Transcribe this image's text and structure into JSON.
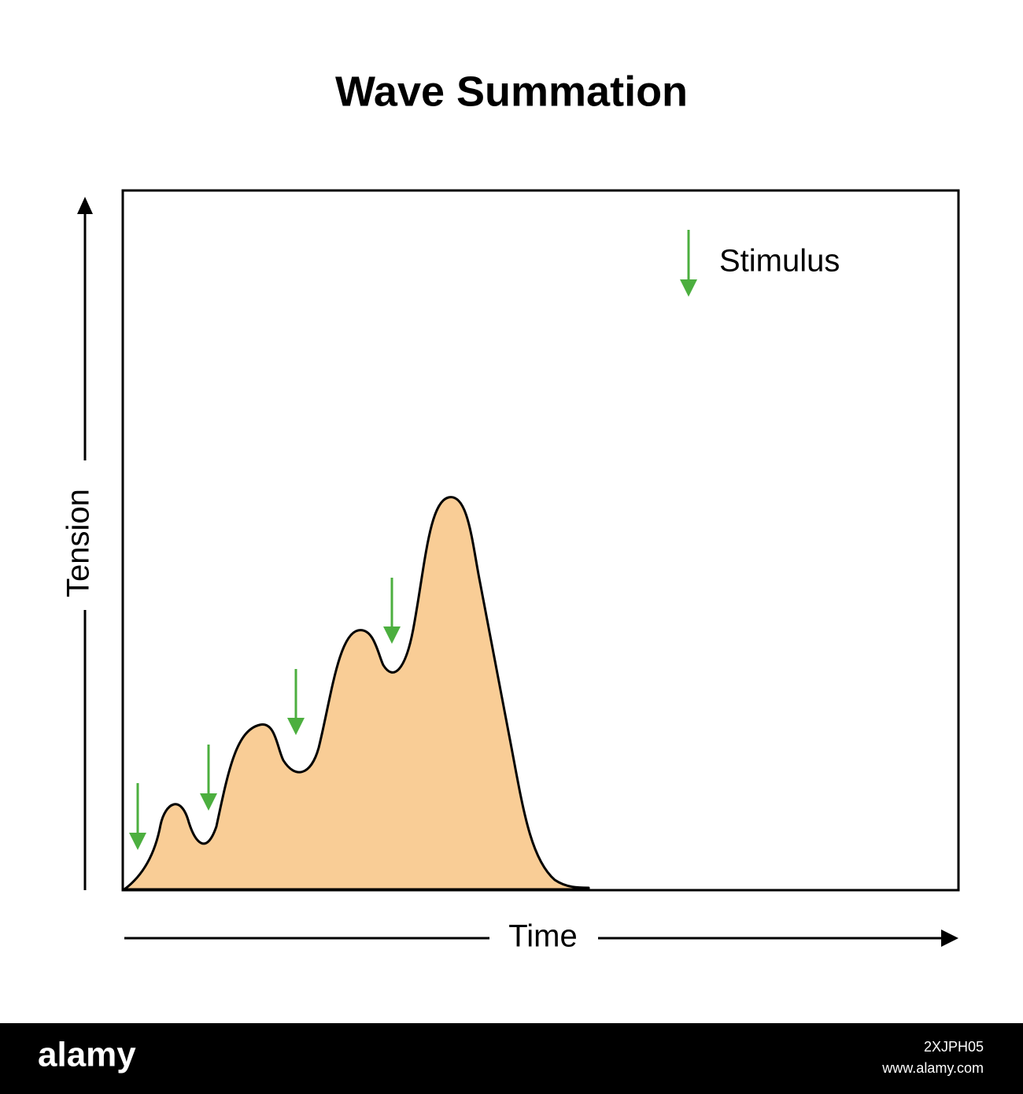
{
  "title": "Wave Summation",
  "y_axis_label": "Tension",
  "x_axis_label": "Time",
  "legend": {
    "label": "Stimulus"
  },
  "footer": {
    "brand": "alamy",
    "image_id": "2XJPH05",
    "url": "www.alamy.com"
  }
}
